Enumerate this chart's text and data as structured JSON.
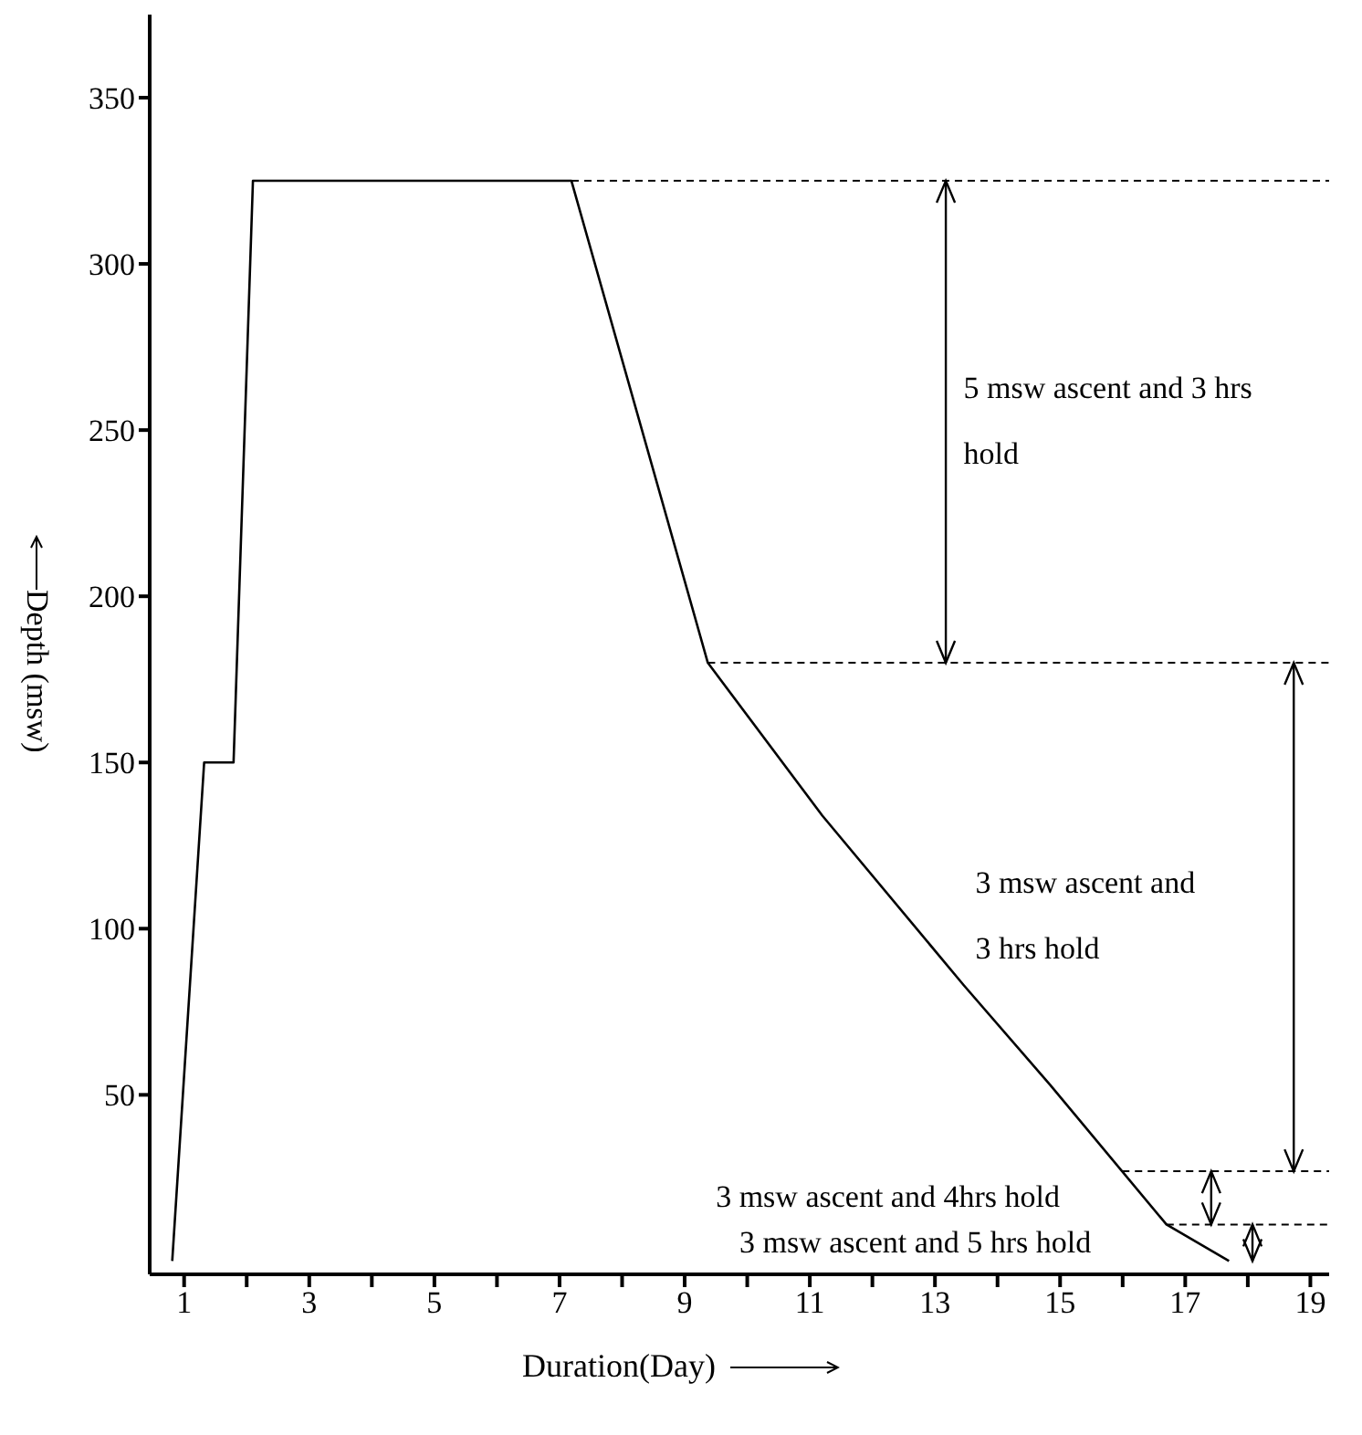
{
  "chart_data": {
    "type": "line",
    "xlabel": "Duration(Day)",
    "ylabel": "Depth (msw)",
    "x": [
      0.81,
      1.32,
      1.79,
      2.1,
      7.19,
      9.37,
      11.2,
      13.46,
      14.84,
      16.7,
      17.7
    ],
    "series": [
      {
        "color": "#000000",
        "values": [
          0,
          150,
          150,
          325,
          325,
          180,
          134,
          83,
          53,
          11,
          0
        ]
      }
    ],
    "xlim": [
      0.45,
      19.3
    ],
    "xticks": [
      1,
      {
        "value": 2,
        "label": null
      },
      3,
      {
        "value": 4,
        "label": null
      },
      5,
      {
        "value": 6,
        "label": null
      },
      7,
      {
        "value": 8,
        "label": null
      },
      9,
      {
        "value": 10,
        "label": null
      },
      11,
      {
        "value": 12,
        "label": null
      },
      13,
      {
        "value": 14,
        "label": null
      },
      15,
      {
        "value": 16,
        "label": null
      },
      17,
      {
        "value": 18,
        "label": null
      },
      19
    ],
    "ylim": [
      -4,
      375
    ],
    "yticks": [
      50,
      100,
      150,
      200,
      250,
      300,
      350
    ],
    "ref_lines": [
      {
        "axis": "y",
        "value": 325,
        "line_style": "dashed",
        "color": "#000000"
      },
      {
        "axis": "y",
        "value": 180,
        "line_style": "dashed",
        "color": "#000000"
      },
      {
        "axis": "y",
        "value": 27,
        "line_style": "dashed",
        "color": "#000000"
      },
      {
        "axis": "y",
        "value": 11,
        "line_style": "dashed",
        "color": "#000000"
      }
    ],
    "annotations": [
      "5 msw ascent and 3 hrs hold",
      "3 msw ascent and 3 hrs hold",
      "3 msw ascent and 4hrs hold",
      "3 msw ascent and 5 hrs hold"
    ],
    "grid": false,
    "legend": false,
    "marker": "none",
    "line_style": "solid"
  }
}
